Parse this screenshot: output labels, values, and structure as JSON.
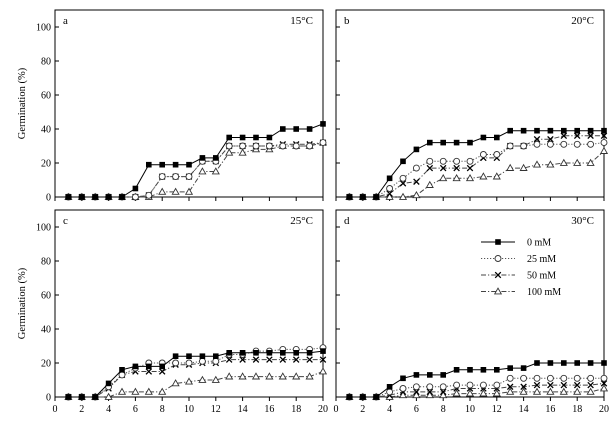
{
  "chart_data": [
    {
      "type": "line",
      "panel_label": "a",
      "temperature_label": "15°C",
      "ylabel": "Germination (%)",
      "xlabel": "",
      "xlim": [
        0,
        20
      ],
      "ylim": [
        0,
        110
      ],
      "xticks": [
        0,
        2,
        4,
        6,
        8,
        10,
        12,
        14,
        16,
        18,
        20
      ],
      "yticks": [
        0,
        20,
        40,
        60,
        80,
        100
      ],
      "show_x_tick_labels": false,
      "show_y_tick_labels": true,
      "show_legend": false,
      "x": [
        1,
        2,
        3,
        4,
        5,
        6,
        7,
        8,
        9,
        10,
        11,
        12,
        13,
        14,
        15,
        16,
        17,
        18,
        19,
        20
      ],
      "series": [
        {
          "name": "0 mM",
          "marker": "filled-square",
          "line": "solid",
          "values": [
            0,
            0,
            0,
            0,
            0,
            5,
            19,
            19,
            19,
            19,
            23,
            23,
            35,
            35,
            35,
            35,
            40,
            40,
            40,
            43
          ]
        },
        {
          "name": "25 mM",
          "marker": "open-circle",
          "line": "dotted",
          "values": [
            0,
            0,
            0,
            0,
            0,
            0,
            1,
            12,
            12,
            12,
            21,
            21,
            30,
            30,
            30,
            30,
            30,
            30,
            30,
            32
          ]
        },
        {
          "name": "50 mM",
          "marker": "x",
          "line": "dashdot",
          "values": [
            0,
            0,
            0,
            0,
            0,
            0,
            1,
            12,
            12,
            12,
            21,
            21,
            30,
            30,
            30,
            30,
            31,
            31,
            31,
            32
          ]
        },
        {
          "name": "100 mM",
          "marker": "open-triangle",
          "line": "dashdot",
          "values": [
            0,
            0,
            0,
            0,
            0,
            0,
            0,
            3,
            3,
            3,
            15,
            15,
            26,
            26,
            28,
            28,
            30,
            30,
            30,
            32
          ]
        }
      ]
    },
    {
      "type": "line",
      "panel_label": "b",
      "temperature_label": "20°C",
      "ylabel": "",
      "xlabel": "",
      "xlim": [
        0,
        20
      ],
      "ylim": [
        0,
        110
      ],
      "xticks": [
        0,
        2,
        4,
        6,
        8,
        10,
        12,
        14,
        16,
        18,
        20
      ],
      "yticks": [
        0,
        20,
        40,
        60,
        80,
        100
      ],
      "show_x_tick_labels": false,
      "show_y_tick_labels": false,
      "show_legend": false,
      "x": [
        1,
        2,
        3,
        4,
        5,
        6,
        7,
        8,
        9,
        10,
        11,
        12,
        13,
        14,
        15,
        16,
        17,
        18,
        19,
        20
      ],
      "series": [
        {
          "name": "0 mM",
          "marker": "filled-square",
          "line": "solid",
          "values": [
            0,
            0,
            0,
            11,
            21,
            28,
            32,
            32,
            32,
            32,
            35,
            35,
            39,
            39,
            39,
            39,
            39,
            39,
            39,
            39
          ]
        },
        {
          "name": "25 mM",
          "marker": "open-circle",
          "line": "dotted",
          "values": [
            0,
            0,
            0,
            5,
            11,
            17,
            21,
            21,
            21,
            21,
            25,
            25,
            30,
            30,
            31,
            31,
            31,
            31,
            31,
            32
          ]
        },
        {
          "name": "50 mM",
          "marker": "x",
          "line": "dashdot",
          "values": [
            0,
            0,
            0,
            2,
            8,
            9,
            17,
            17,
            17,
            17,
            23,
            23,
            30,
            30,
            34,
            34,
            36,
            36,
            36,
            36
          ]
        },
        {
          "name": "100 mM",
          "marker": "open-triangle",
          "line": "dashdot",
          "values": [
            0,
            0,
            0,
            0,
            0,
            1,
            7,
            11,
            11,
            11,
            12,
            12,
            17,
            17,
            19,
            19,
            20,
            20,
            20,
            27
          ]
        }
      ]
    },
    {
      "type": "line",
      "panel_label": "c",
      "temperature_label": "25°C",
      "ylabel": "Germination (%)",
      "xlabel": "",
      "xlim": [
        0,
        20
      ],
      "ylim": [
        0,
        110
      ],
      "xticks": [
        0,
        2,
        4,
        6,
        8,
        10,
        12,
        14,
        16,
        18,
        20
      ],
      "yticks": [
        0,
        20,
        40,
        60,
        80,
        100
      ],
      "show_x_tick_labels": true,
      "show_y_tick_labels": true,
      "show_legend": false,
      "x": [
        1,
        2,
        3,
        4,
        5,
        6,
        7,
        8,
        9,
        10,
        11,
        12,
        13,
        14,
        15,
        16,
        17,
        18,
        19,
        20
      ],
      "series": [
        {
          "name": "0 mM",
          "marker": "filled-square",
          "line": "solid",
          "values": [
            0,
            0,
            0,
            8,
            16,
            18,
            18,
            18,
            24,
            24,
            24,
            24,
            26,
            26,
            26,
            26,
            26,
            26,
            26,
            27
          ]
        },
        {
          "name": "25 mM",
          "marker": "open-circle",
          "line": "dotted",
          "values": [
            0,
            0,
            0,
            6,
            13,
            17,
            20,
            20,
            20,
            20,
            21,
            21,
            25,
            25,
            27,
            27,
            28,
            28,
            28,
            29
          ]
        },
        {
          "name": "50 mM",
          "marker": "x",
          "line": "dashdot",
          "values": [
            0,
            0,
            0,
            5,
            13,
            15,
            15,
            15,
            19,
            19,
            20,
            20,
            22,
            22,
            22,
            22,
            22,
            22,
            22,
            22
          ]
        },
        {
          "name": "100 mM",
          "marker": "open-triangle",
          "line": "dashdot",
          "values": [
            0,
            0,
            0,
            0,
            3,
            3,
            3,
            3,
            8,
            9,
            10,
            10,
            12,
            12,
            12,
            12,
            12,
            12,
            12,
            15
          ]
        }
      ]
    },
    {
      "type": "line",
      "panel_label": "d",
      "temperature_label": "30°C",
      "ylabel": "",
      "xlabel": "",
      "xlim": [
        0,
        20
      ],
      "ylim": [
        0,
        110
      ],
      "xticks": [
        0,
        2,
        4,
        6,
        8,
        10,
        12,
        14,
        16,
        18,
        20
      ],
      "yticks": [
        0,
        20,
        40,
        60,
        80,
        100
      ],
      "show_x_tick_labels": true,
      "show_y_tick_labels": false,
      "show_legend": true,
      "legend_position": "upper-right",
      "x": [
        1,
        2,
        3,
        4,
        5,
        6,
        7,
        8,
        9,
        10,
        11,
        12,
        13,
        14,
        15,
        16,
        17,
        18,
        19,
        20
      ],
      "series": [
        {
          "name": "0 mM",
          "marker": "filled-square",
          "line": "solid",
          "values": [
            0,
            0,
            0,
            6,
            11,
            13,
            13,
            13,
            16,
            16,
            16,
            16,
            17,
            17,
            20,
            20,
            20,
            20,
            20,
            20
          ]
        },
        {
          "name": "25 mM",
          "marker": "open-circle",
          "line": "dotted",
          "values": [
            0,
            0,
            0,
            3,
            5,
            6,
            6,
            6,
            7,
            7,
            7,
            7,
            11,
            11,
            11,
            11,
            11,
            11,
            11,
            11
          ]
        },
        {
          "name": "50 mM",
          "marker": "x",
          "line": "dashdot",
          "values": [
            0,
            0,
            0,
            1,
            3,
            3,
            3,
            3,
            5,
            5,
            5,
            5,
            6,
            6,
            7,
            7,
            7,
            7,
            7,
            8
          ]
        },
        {
          "name": "100 mM",
          "marker": "open-triangle",
          "line": "dashdot",
          "values": [
            0,
            0,
            0,
            0,
            1,
            1,
            1,
            1,
            2,
            2,
            2,
            2,
            3,
            3,
            3,
            3,
            3,
            3,
            3,
            5
          ]
        }
      ]
    }
  ]
}
